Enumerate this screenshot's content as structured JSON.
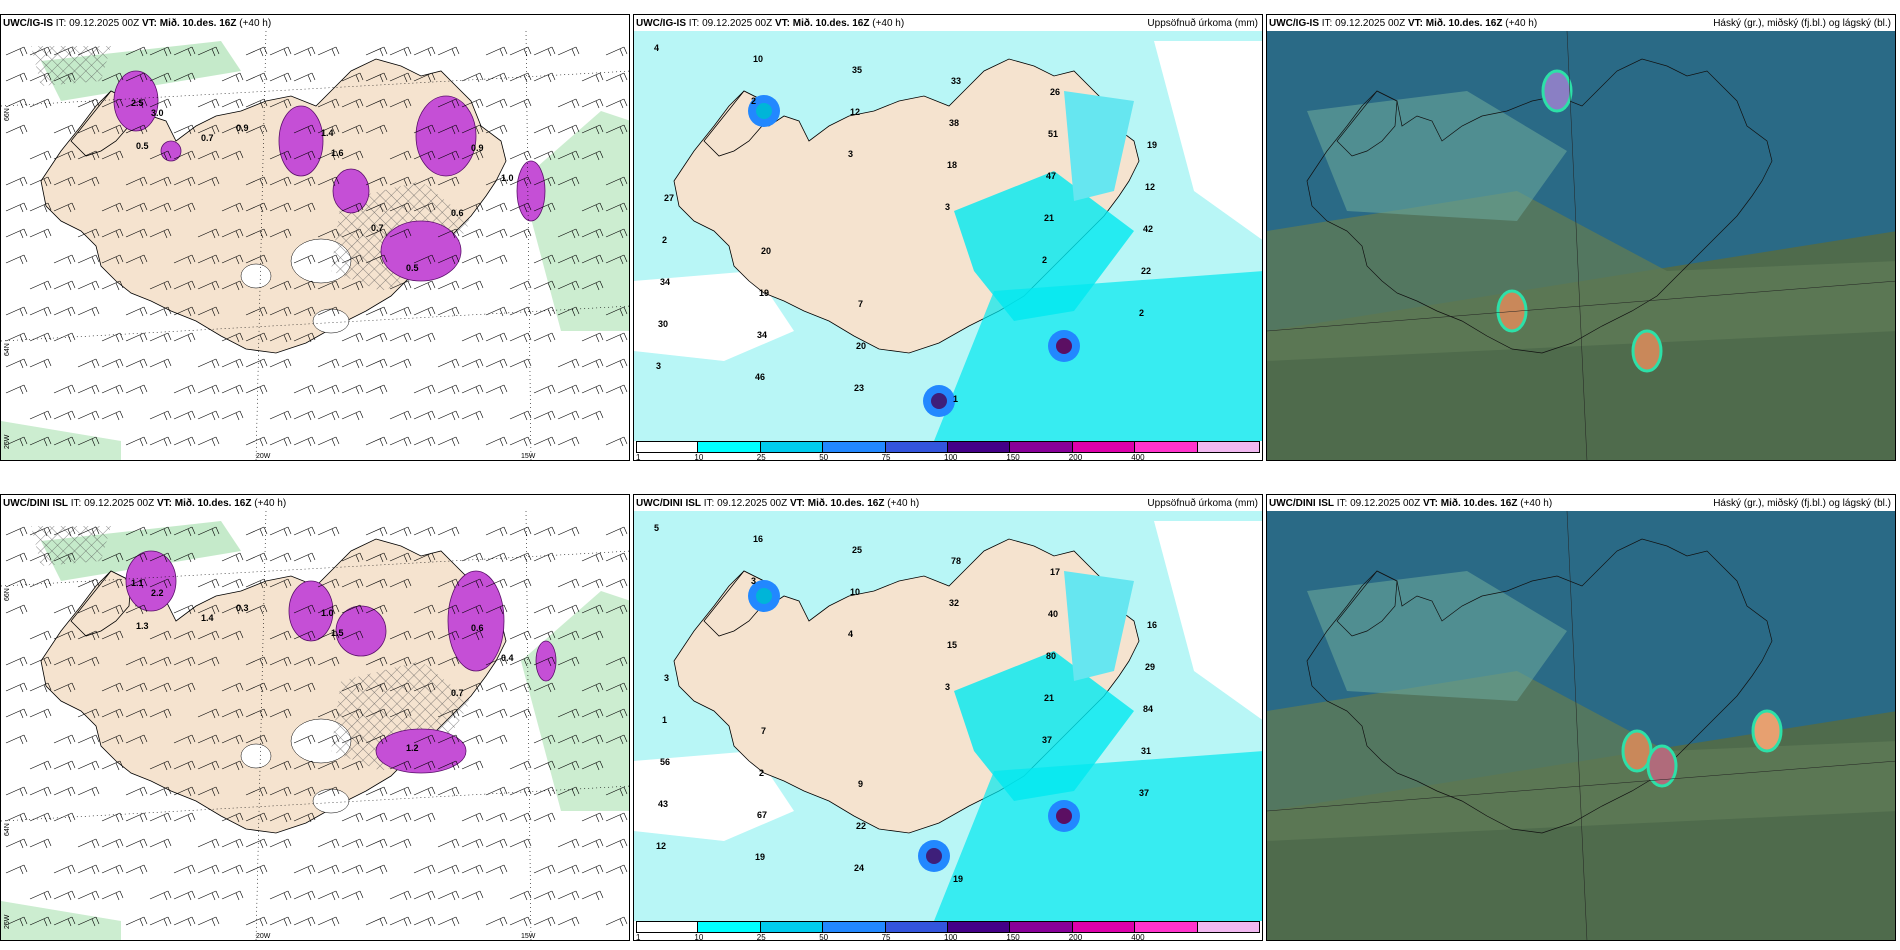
{
  "panels": [
    {
      "id": "p1",
      "model": "UWC/IG-IS",
      "it_label": "IT:",
      "it": "09.12.2025 00Z",
      "vt_label": "VT:",
      "vt": "Mið. 10.des. 16Z",
      "lead": "(+40 h)",
      "right_title": "",
      "type": "wind"
    },
    {
      "id": "p2",
      "model": "UWC/IG-IS",
      "it_label": "IT:",
      "it": "09.12.2025 00Z",
      "vt_label": "VT:",
      "vt": "Mið. 10.des. 16Z",
      "lead": "(+40 h)",
      "right_title": "Uppsöfnuð úrkoma (mm)",
      "type": "precip"
    },
    {
      "id": "p3",
      "model": "UWC/IG-IS",
      "it_label": "IT:",
      "it": "09.12.2025 00Z",
      "vt_label": "VT:",
      "vt": "Mið. 10.des. 16Z",
      "lead": "(+40 h)",
      "right_title": "Háský (gr.), miðský (fj.bl.) og lágský (bl.)",
      "type": "cloud"
    },
    {
      "id": "p4",
      "model": "UWC/DINI ISL",
      "it_label": "IT:",
      "it": "09.12.2025 00Z",
      "vt_label": "VT:",
      "vt": "Mið. 10.des. 16Z",
      "lead": "(+40 h)",
      "right_title": "",
      "type": "wind"
    },
    {
      "id": "p5",
      "model": "UWC/DINI ISL",
      "it_label": "IT:",
      "it": "09.12.2025 00Z",
      "vt_label": "VT:",
      "vt": "Mið. 10.des. 16Z",
      "lead": "(+40 h)",
      "right_title": "Uppsöfnuð úrkoma (mm)",
      "type": "precip"
    },
    {
      "id": "p6",
      "model": "UWC/DINI ISL",
      "it_label": "IT:",
      "it": "09.12.2025 00Z",
      "vt_label": "VT:",
      "vt": "Mið. 10.des. 16Z",
      "lead": "(+40 h)",
      "right_title": "Háský (gr.), miðský (fj.bl.) og lágský (bl.)",
      "type": "cloud"
    }
  ],
  "axis_labels": {
    "lat66": "66N",
    "lat64": "64N",
    "lon20": "20W",
    "lon15": "15W",
    "lon25": "25W"
  },
  "colorbar": {
    "labels": [
      "1",
      "10",
      "25",
      "50",
      "75",
      "100",
      "150",
      "200",
      "400"
    ],
    "colors": [
      "#ffffff",
      "#00ffff",
      "#00ccee",
      "#2288ff",
      "#3355dd",
      "#440088",
      "#880099",
      "#dd00aa",
      "#ff33cc",
      "#f0b8f0"
    ]
  },
  "precip_top_values": [
    "4",
    "2",
    "3",
    "3",
    "2",
    "2",
    "3",
    "10",
    "12",
    "18",
    "21",
    "22",
    "30",
    "46",
    "35",
    "38",
    "47",
    "42",
    "34",
    "34",
    "23",
    "33",
    "51",
    "12",
    "2",
    "19",
    "20",
    "1",
    "26",
    "19",
    "27",
    "20",
    "7"
  ],
  "precip_bottom_values": [
    "5",
    "3",
    "4",
    "3",
    "37",
    "37",
    "12",
    "16",
    "10",
    "15",
    "21",
    "31",
    "43",
    "19",
    "25",
    "32",
    "80",
    "84",
    "56",
    "67",
    "24",
    "78",
    "40",
    "29",
    "1",
    "2",
    "22",
    "19",
    "17",
    "16",
    "3",
    "7",
    "9"
  ],
  "wind_top_values": [
    "2.5",
    "3.0",
    "0.5",
    "0.7",
    "0.9",
    "1.4",
    "1.6",
    "0.9",
    "1.0",
    "0.6",
    "0.5",
    "0.7"
  ],
  "wind_bottom_values": [
    "1.1",
    "2.2",
    "1.3",
    "1.4",
    "0.3",
    "1.0",
    "1.5",
    "0.6",
    "0.4",
    "0.7",
    "1.2"
  ],
  "colors": {
    "land": "#f5e3cf",
    "precip_light": "#b8f6f6",
    "cyan": "#00e8f0",
    "magenta": "#c54fd6",
    "green": "#bfe8c4",
    "cloud_bg": "#2a6a86",
    "cloud_dark": "#3e5a4a"
  }
}
